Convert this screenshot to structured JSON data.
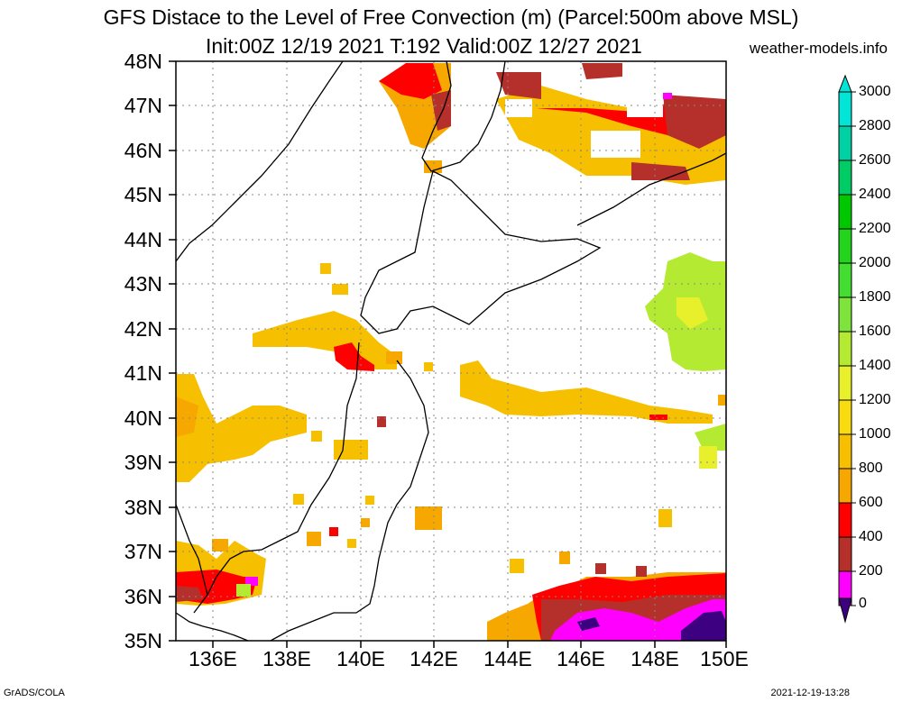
{
  "header": {
    "title_line1": "GFS Distace to the Level of Free Convection (m) (Parcel:500m above MSL)",
    "title_line2": "Init:00Z 12/19 2021 T:192 Valid:00Z 12/27 2021",
    "site": "weather-models.info"
  },
  "footer": {
    "left": "GrADS/COLA",
    "right": "2021-12-19-13:28"
  },
  "map": {
    "lat_labels": [
      "48N",
      "47N",
      "46N",
      "45N",
      "44N",
      "43N",
      "42N",
      "41N",
      "40N",
      "39N",
      "38N",
      "37N",
      "36N",
      "35N"
    ],
    "lon_labels": [
      "136E",
      "138E",
      "140E",
      "142E",
      "144E",
      "146E",
      "148E",
      "150E"
    ],
    "lat_range": [
      35,
      48
    ],
    "lon_range": [
      135,
      150
    ],
    "grid": true
  },
  "colorbar": {
    "labels": [
      "3000",
      "2800",
      "2600",
      "2400",
      "2200",
      "2000",
      "1800",
      "1600",
      "1400",
      "1200",
      "1000",
      "800",
      "600",
      "400",
      "200",
      "0"
    ],
    "colors": [
      "#00e5d6",
      "#00d1a4",
      "#00cc66",
      "#00c800",
      "#22d41c",
      "#44de32",
      "#7ee43c",
      "#b5ea33",
      "#e8f02c",
      "#f8dc10",
      "#f6c000",
      "#f7a800",
      "#ff0000",
      "#b5302a",
      "#ff00ff",
      "#3c0080"
    ],
    "top_arrow_color": "#00e5d6",
    "bottom_arrow_color": "#3c0080"
  },
  "legend_colors": {
    "band_0_200": "#3c0080",
    "band_200_400": "#ff00ff",
    "band_400_600": "#b5302a",
    "band_600_800": "#ff0000",
    "band_800_1000": "#f7a800",
    "band_1000_1200": "#f6c000",
    "band_1200_1400": "#f8dc10",
    "band_1400_1600": "#e8f02c",
    "band_1600_1800": "#b5ea33",
    "band_1800_2000": "#7ee43c"
  }
}
